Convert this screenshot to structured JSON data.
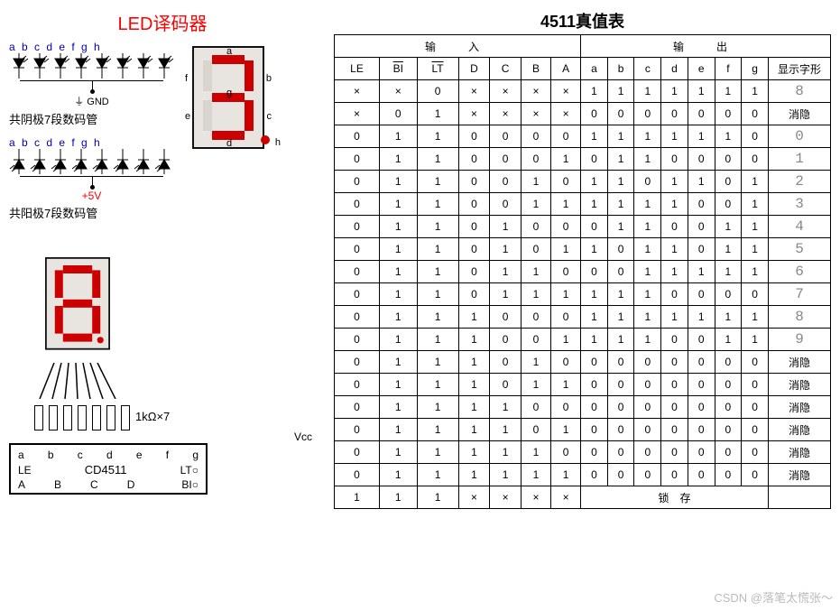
{
  "titles": {
    "led_decoder": "LED译码器",
    "truth_table": "4511真值表"
  },
  "pin_letters": [
    "a",
    "b",
    "c",
    "d",
    "e",
    "f",
    "g",
    "h"
  ],
  "captions": {
    "common_cathode": "共阴极7段数码管",
    "common_anode": "共阳极7段数码管",
    "gnd": "GND",
    "plus5v": "+5V",
    "h_label": "h"
  },
  "seven_seg_labels": {
    "a": "a",
    "b": "b",
    "c": "c",
    "d": "d",
    "e": "e",
    "f": "f",
    "g": "g"
  },
  "schematic": {
    "resistor_label": "1kΩ×7",
    "vcc": "Vcc",
    "top_pins": [
      "a",
      "b",
      "c",
      "d",
      "e",
      "f",
      "g"
    ],
    "side_left": "LE",
    "side_right_top": "LT",
    "side_right_bot": "BI",
    "chip_name": "CD4511",
    "bottom_pins": [
      "A",
      "B",
      "C",
      "D"
    ],
    "bubble": "○"
  },
  "truth_table": {
    "group_input": "输　入",
    "group_output": "输　出",
    "glyph_header": "显示字形",
    "input_headers": [
      "LE",
      "BI",
      "LT",
      "D",
      "C",
      "B",
      "A"
    ],
    "output_headers": [
      "a",
      "b",
      "c",
      "d",
      "e",
      "f",
      "g"
    ],
    "overline_cols": [
      1,
      2
    ],
    "rows": [
      {
        "in": [
          "×",
          "×",
          "0",
          "×",
          "×",
          "×",
          "×"
        ],
        "out": [
          "1",
          "1",
          "1",
          "1",
          "1",
          "1",
          "1"
        ],
        "glyph": "8"
      },
      {
        "in": [
          "×",
          "0",
          "1",
          "×",
          "×",
          "×",
          "×"
        ],
        "out": [
          "0",
          "0",
          "0",
          "0",
          "0",
          "0",
          "0"
        ],
        "glyph": "消隐"
      },
      {
        "in": [
          "0",
          "1",
          "1",
          "0",
          "0",
          "0",
          "0"
        ],
        "out": [
          "1",
          "1",
          "1",
          "1",
          "1",
          "1",
          "0"
        ],
        "glyph": "0"
      },
      {
        "in": [
          "0",
          "1",
          "1",
          "0",
          "0",
          "0",
          "1"
        ],
        "out": [
          "0",
          "1",
          "1",
          "0",
          "0",
          "0",
          "0"
        ],
        "glyph": "1"
      },
      {
        "in": [
          "0",
          "1",
          "1",
          "0",
          "0",
          "1",
          "0"
        ],
        "out": [
          "1",
          "1",
          "0",
          "1",
          "1",
          "0",
          "1"
        ],
        "glyph": "2"
      },
      {
        "in": [
          "0",
          "1",
          "1",
          "0",
          "0",
          "1",
          "1"
        ],
        "out": [
          "1",
          "1",
          "1",
          "1",
          "0",
          "0",
          "1"
        ],
        "glyph": "3"
      },
      {
        "in": [
          "0",
          "1",
          "1",
          "0",
          "1",
          "0",
          "0"
        ],
        "out": [
          "0",
          "1",
          "1",
          "0",
          "0",
          "1",
          "1"
        ],
        "glyph": "4"
      },
      {
        "in": [
          "0",
          "1",
          "1",
          "0",
          "1",
          "0",
          "1"
        ],
        "out": [
          "1",
          "0",
          "1",
          "1",
          "0",
          "1",
          "1"
        ],
        "glyph": "5"
      },
      {
        "in": [
          "0",
          "1",
          "1",
          "0",
          "1",
          "1",
          "0"
        ],
        "out": [
          "0",
          "0",
          "1",
          "1",
          "1",
          "1",
          "1"
        ],
        "glyph": "6"
      },
      {
        "in": [
          "0",
          "1",
          "1",
          "0",
          "1",
          "1",
          "1"
        ],
        "out": [
          "1",
          "1",
          "1",
          "0",
          "0",
          "0",
          "0"
        ],
        "glyph": "7"
      },
      {
        "in": [
          "0",
          "1",
          "1",
          "1",
          "0",
          "0",
          "0"
        ],
        "out": [
          "1",
          "1",
          "1",
          "1",
          "1",
          "1",
          "1"
        ],
        "glyph": "8"
      },
      {
        "in": [
          "0",
          "1",
          "1",
          "1",
          "0",
          "0",
          "1"
        ],
        "out": [
          "1",
          "1",
          "1",
          "0",
          "0",
          "1",
          "1"
        ],
        "glyph": "9"
      },
      {
        "in": [
          "0",
          "1",
          "1",
          "1",
          "0",
          "1",
          "0"
        ],
        "out": [
          "0",
          "0",
          "0",
          "0",
          "0",
          "0",
          "0"
        ],
        "glyph": "消隐"
      },
      {
        "in": [
          "0",
          "1",
          "1",
          "1",
          "0",
          "1",
          "1"
        ],
        "out": [
          "0",
          "0",
          "0",
          "0",
          "0",
          "0",
          "0"
        ],
        "glyph": "消隐"
      },
      {
        "in": [
          "0",
          "1",
          "1",
          "1",
          "1",
          "0",
          "0"
        ],
        "out": [
          "0",
          "0",
          "0",
          "0",
          "0",
          "0",
          "0"
        ],
        "glyph": "消隐"
      },
      {
        "in": [
          "0",
          "1",
          "1",
          "1",
          "1",
          "0",
          "1"
        ],
        "out": [
          "0",
          "0",
          "0",
          "0",
          "0",
          "0",
          "0"
        ],
        "glyph": "消隐"
      },
      {
        "in": [
          "0",
          "1",
          "1",
          "1",
          "1",
          "1",
          "0"
        ],
        "out": [
          "0",
          "0",
          "0",
          "0",
          "0",
          "0",
          "0"
        ],
        "glyph": "消隐"
      },
      {
        "in": [
          "0",
          "1",
          "1",
          "1",
          "1",
          "1",
          "1"
        ],
        "out": [
          "0",
          "0",
          "0",
          "0",
          "0",
          "0",
          "0"
        ],
        "glyph": "消隐"
      },
      {
        "in": [
          "1",
          "1",
          "1",
          "×",
          "×",
          "×",
          "×"
        ],
        "out_text": "锁　存",
        "glyph": ""
      }
    ],
    "digit_glyphs": [
      "8",
      "消隐",
      "0",
      "1",
      "2",
      "3",
      "4",
      "5",
      "6",
      "7",
      "8",
      "9",
      "消隐",
      "消隐",
      "消隐",
      "消隐",
      "消隐",
      "消隐",
      ""
    ],
    "colors": {
      "border": "#000000",
      "text": "#000000",
      "digit_glyph": "#888888"
    }
  },
  "colors": {
    "title_red": "#ff0000",
    "pin_blue": "#0000aa",
    "seg_on": "#cc0000",
    "seg_off": "#d8d5cf",
    "seg_bg": "#e8e4df",
    "plus5v": "#ff0000",
    "watermark": "#bbbbbb"
  },
  "watermark": "CSDN @落笔太慌张～"
}
